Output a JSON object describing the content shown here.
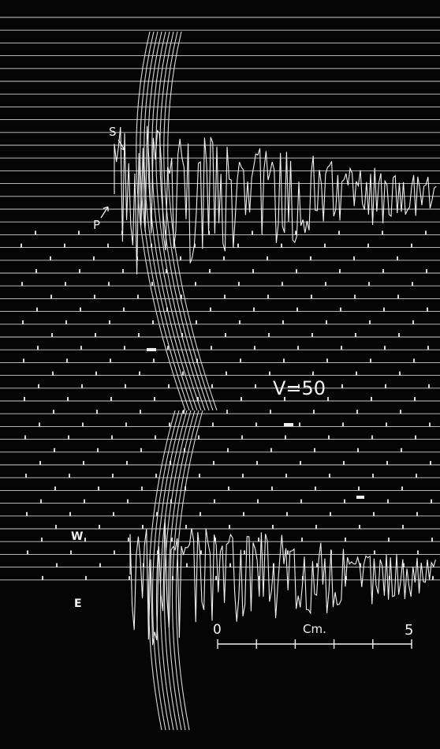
{
  "record": {
    "background_color": "#050505",
    "trace_color": "#f0f0f0",
    "phase_labels": {
      "s": "S",
      "p": "P"
    },
    "magnification_label": "V=50",
    "component_labels": {
      "w": "W",
      "e": "E"
    },
    "scale": {
      "zero_label": "0",
      "unit_label": "Cm.",
      "end_label": "5"
    }
  }
}
